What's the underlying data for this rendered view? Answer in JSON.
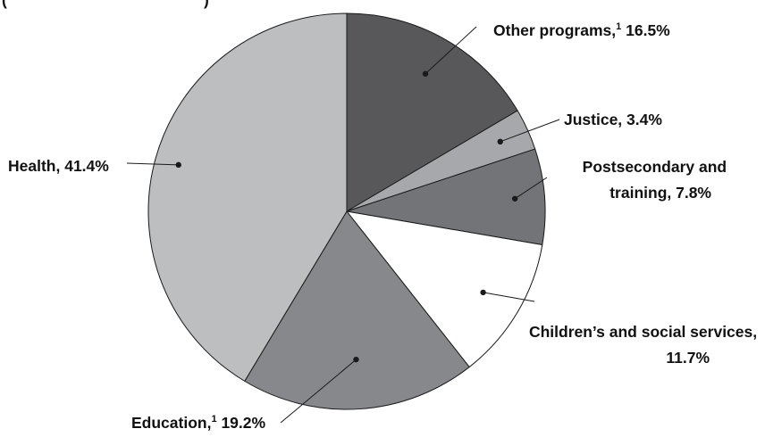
{
  "chart_data": {
    "type": "pie",
    "title_fragment": "(",
    "title_fragment_end": ")",
    "start_angle_deg": 0,
    "direction": "clockwise",
    "slices": [
      {
        "id": "other-programs",
        "label": "Other programs,",
        "superscript": "1",
        "value_text": "16.5%",
        "value": 16.5,
        "color": "#58585a"
      },
      {
        "id": "justice",
        "label": "Justice, 3.4%",
        "value": 3.4,
        "color": "#a7a8ab"
      },
      {
        "id": "postsecondary",
        "label_lines": [
          "Postsecondary and",
          "training, 7.8%"
        ],
        "value": 7.8,
        "color": "#737477"
      },
      {
        "id": "childrens-social",
        "label_lines": [
          "Children’s and social services,",
          "11.7%"
        ],
        "value": 11.7,
        "color": "#ffffff"
      },
      {
        "id": "education",
        "label": "Education,",
        "superscript": "1",
        "value_text": "19.2%",
        "value": 19.2,
        "color": "#87888b"
      },
      {
        "id": "health",
        "label": "Health, 41.4%",
        "value": 41.4,
        "color": "#bdbec0"
      }
    ]
  }
}
